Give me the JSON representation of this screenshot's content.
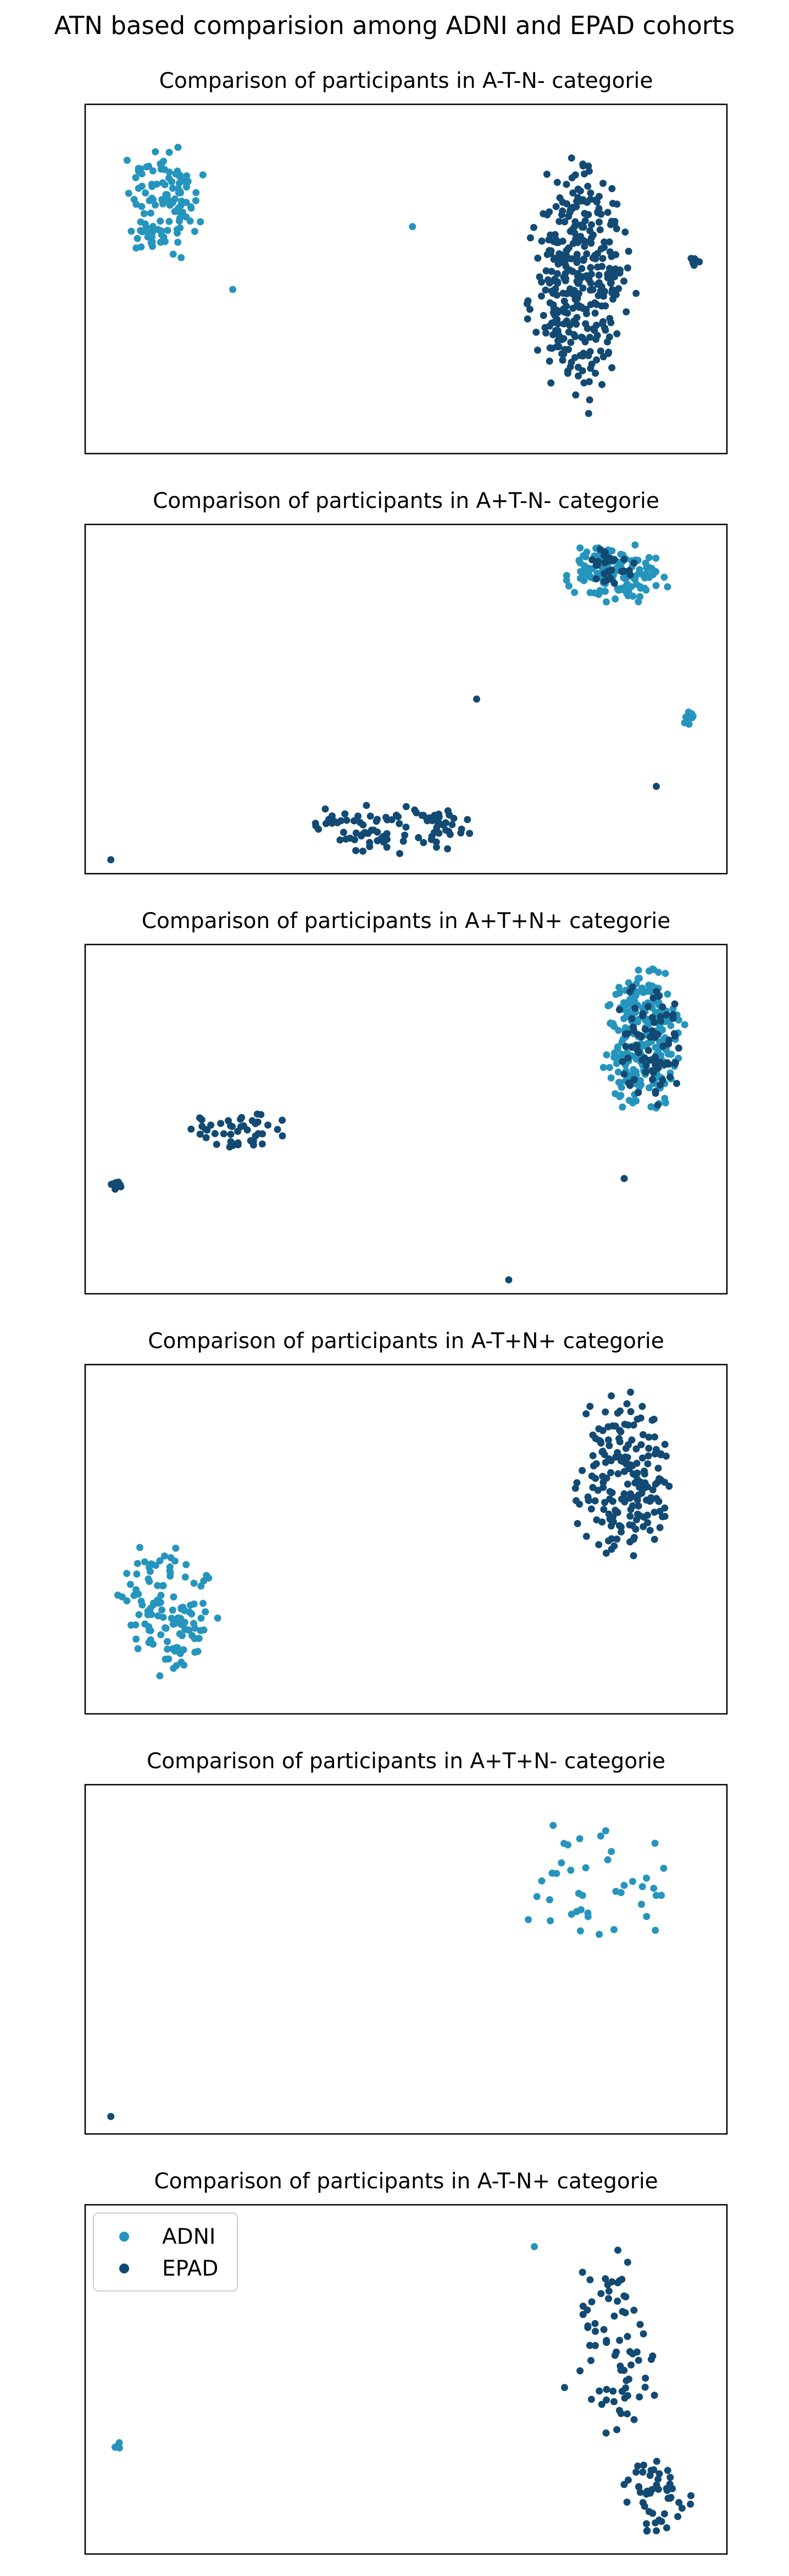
{
  "figure": {
    "title": "ATN based comparision among ADNI and EPAD cohorts"
  },
  "colors": {
    "ADNI": "#2695bd",
    "EPAD": "#124a73"
  },
  "legend": {
    "placement": "upper-left",
    "entries": [
      {
        "name": "ADNI",
        "color": "#2695bd"
      },
      {
        "name": "EPAD",
        "color": "#124a73"
      }
    ]
  },
  "chart_data": [
    {
      "type": "scatter",
      "title": "Comparison of participants in A-T-N- categorie",
      "xlim": [
        0,
        100
      ],
      "ylim": [
        0,
        100
      ],
      "grid": false,
      "ticks": false,
      "legend": false,
      "series": [
        {
          "name": "ADNI",
          "clusters": [
            {
              "cx": 12,
              "cy": 72,
              "rx": 7,
              "ry": 20,
              "n": 120
            },
            {
              "cx": 23,
              "cy": 47,
              "rx": 0.5,
              "ry": 0.5,
              "n": 1
            },
            {
              "cx": 51,
              "cy": 65,
              "rx": 0.5,
              "ry": 0.5,
              "n": 1
            }
          ]
        },
        {
          "name": "EPAD",
          "clusters": [
            {
              "cx": 77,
              "cy": 49,
              "rx": 9,
              "ry": 40,
              "n": 340
            },
            {
              "cx": 95,
              "cy": 55,
              "rx": 1.2,
              "ry": 2,
              "n": 6
            }
          ]
        }
      ]
    },
    {
      "type": "scatter",
      "title": "Comparison of participants in A+T-N- categorie",
      "xlim": [
        0,
        100
      ],
      "ylim": [
        0,
        100
      ],
      "grid": false,
      "ticks": false,
      "legend": false,
      "series": [
        {
          "name": "ADNI",
          "clusters": [
            {
              "cx": 83,
              "cy": 86,
              "rx": 9,
              "ry": 10,
              "n": 130
            },
            {
              "cx": 94,
              "cy": 45,
              "rx": 1.5,
              "ry": 3,
              "n": 10
            }
          ]
        },
        {
          "name": "EPAD",
          "clusters": [
            {
              "cx": 48,
              "cy": 13,
              "rx": 16,
              "ry": 8,
              "n": 95
            },
            {
              "cx": 82,
              "cy": 88,
              "rx": 4,
              "ry": 7,
              "n": 30
            },
            {
              "cx": 4,
              "cy": 4,
              "rx": 0.5,
              "ry": 0.5,
              "n": 1
            },
            {
              "cx": 61,
              "cy": 50,
              "rx": 0.5,
              "ry": 0.5,
              "n": 1
            },
            {
              "cx": 89,
              "cy": 25,
              "rx": 0.5,
              "ry": 0.5,
              "n": 1
            }
          ]
        }
      ]
    },
    {
      "type": "scatter",
      "title": "Comparison of participants in A+T+N+ categorie",
      "xlim": [
        0,
        100
      ],
      "ylim": [
        0,
        100
      ],
      "grid": false,
      "ticks": false,
      "legend": false,
      "series": [
        {
          "name": "ADNI",
          "clusters": [
            {
              "cx": 87,
              "cy": 73,
              "rx": 7,
              "ry": 24,
              "n": 240
            }
          ]
        },
        {
          "name": "EPAD",
          "clusters": [
            {
              "cx": 88,
              "cy": 72,
              "rx": 6,
              "ry": 22,
              "n": 80
            },
            {
              "cx": 24,
              "cy": 47,
              "rx": 9,
              "ry": 6,
              "n": 45
            },
            {
              "cx": 5,
              "cy": 31,
              "rx": 1.5,
              "ry": 1.5,
              "n": 8
            },
            {
              "cx": 84,
              "cy": 33,
              "rx": 0.5,
              "ry": 0.5,
              "n": 1
            },
            {
              "cx": 66,
              "cy": 4,
              "rx": 0.5,
              "ry": 0.5,
              "n": 1
            }
          ]
        }
      ]
    },
    {
      "type": "scatter",
      "title": "Comparison of participants in A-T+N+ categorie",
      "xlim": [
        0,
        100
      ],
      "ylim": [
        0,
        100
      ],
      "grid": false,
      "ticks": false,
      "legend": false,
      "series": [
        {
          "name": "ADNI",
          "clusters": [
            {
              "cx": 13,
              "cy": 30,
              "rx": 9,
              "ry": 21,
              "n": 120
            }
          ]
        },
        {
          "name": "EPAD",
          "clusters": [
            {
              "cx": 84,
              "cy": 68,
              "rx": 9,
              "ry": 28,
              "n": 190
            }
          ]
        }
      ]
    },
    {
      "type": "scatter",
      "title": "Comparison of participants in A+T+N- categorie",
      "xlim": [
        0,
        100
      ],
      "ylim": [
        0,
        100
      ],
      "grid": false,
      "ticks": false,
      "legend": false,
      "series": [
        {
          "name": "ADNI",
          "clusters": [
            {
              "cx": 79,
              "cy": 72,
              "rx": 15,
              "ry": 20,
              "n": 42
            }
          ]
        },
        {
          "name": "EPAD",
          "clusters": [
            {
              "cx": 4,
              "cy": 5,
              "rx": 0.5,
              "ry": 0.5,
              "n": 1
            }
          ]
        }
      ]
    },
    {
      "type": "scatter",
      "title": "Comparison of participants in A-T-N+ categorie",
      "xlim": [
        0,
        100
      ],
      "ylim": [
        0,
        100
      ],
      "grid": false,
      "ticks": false,
      "legend": true,
      "series": [
        {
          "name": "ADNI",
          "clusters": [
            {
              "cx": 5,
              "cy": 31,
              "rx": 1,
              "ry": 1.5,
              "n": 5
            },
            {
              "cx": 70,
              "cy": 88,
              "rx": 0.5,
              "ry": 0.5,
              "n": 1
            }
          ]
        },
        {
          "name": "EPAD",
          "clusters": [
            {
              "cx": 82,
              "cy": 59,
              "rx": 8,
              "ry": 32,
              "n": 75
            },
            {
              "cx": 89,
              "cy": 16,
              "rx": 6,
              "ry": 12,
              "n": 50
            }
          ]
        }
      ]
    }
  ]
}
